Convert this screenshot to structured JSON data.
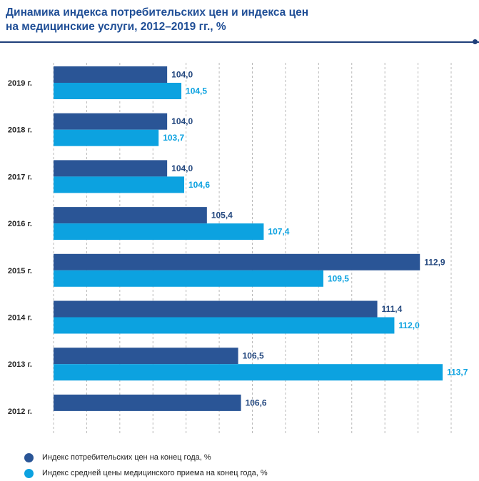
{
  "header": {
    "title_line1": "Динамика индекса потребительских цен и индекса цен",
    "title_line2": "на медицинские услуги, 2012–2019 гг., %"
  },
  "colors": {
    "cpi": "#2a5596",
    "medical": "#0ca2e0",
    "cpi_label": "#24487f",
    "medical_label": "#0ca2e0",
    "grid": "#b9b9b9"
  },
  "chart_data": {
    "type": "bar",
    "orientation": "horizontal",
    "categories": [
      "2019 г.",
      "2018 г.",
      "2017 г.",
      "2016 г.",
      "2015 г.",
      "2014 г.",
      "2013 г.",
      "2012 г."
    ],
    "series": [
      {
        "name": "Индекс потребительских цен на конец года, %",
        "values": [
          104.0,
          104.0,
          104.0,
          105.4,
          112.9,
          111.4,
          106.5,
          106.6
        ],
        "labels": [
          "104,0",
          "104,0",
          "104,0",
          "105,4",
          "112,9",
          "111,4",
          "106,5",
          "106,6"
        ]
      },
      {
        "name": "Индекс средней цены медицинского приема на конец года, %",
        "values": [
          104.5,
          103.7,
          104.6,
          107.4,
          109.5,
          112.0,
          113.7,
          null
        ],
        "labels": [
          "104,5",
          "103,7",
          "104,6",
          "107,4",
          "109,5",
          "112,0",
          "113,7",
          ""
        ]
      }
    ],
    "xlim": [
      100,
      114.0
    ],
    "grid": true,
    "legend_position": "bottom-left"
  }
}
